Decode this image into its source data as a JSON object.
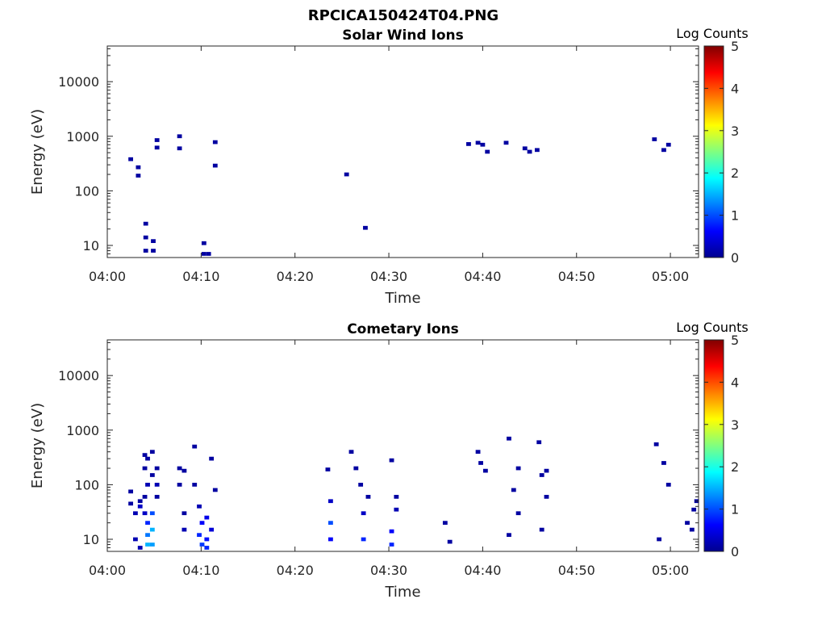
{
  "figure_title": "RPCICA150424T04.PNG",
  "colormap": [
    "#00008f",
    "#0000ff",
    "#0080ff",
    "#00ffff",
    "#80ff80",
    "#ffff00",
    "#ff8000",
    "#ff0000",
    "#800000"
  ],
  "chart_data": [
    {
      "type": "heatmap",
      "title": "Solar Wind Ions",
      "xlabel": "Time",
      "ylabel": "Energy (eV)",
      "x_ticks": [
        "04:00",
        "04:10",
        "04:20",
        "04:30",
        "04:40",
        "04:50",
        "05:00"
      ],
      "y_ticks": [
        "10",
        "100",
        "1000",
        "10000"
      ],
      "y_scale": "log",
      "xlim_minutes_after_0400": [
        0,
        63
      ],
      "ylim_eV": [
        6,
        45000
      ],
      "colorbar": {
        "label": "Log Counts",
        "ticks": [
          "0",
          "1",
          "2",
          "3",
          "4",
          "5"
        ],
        "range": [
          0,
          5
        ]
      },
      "cells": [
        [
          2.5,
          380,
          0.1
        ],
        [
          3.3,
          270,
          0.1
        ],
        [
          3.3,
          190,
          0.1
        ],
        [
          4.1,
          8,
          0.1
        ],
        [
          4.1,
          14,
          0.1
        ],
        [
          4.1,
          25,
          0.1
        ],
        [
          4.9,
          8,
          0.1
        ],
        [
          4.9,
          12,
          0.1
        ],
        [
          5.3,
          620,
          0.1
        ],
        [
          5.3,
          850,
          0.1
        ],
        [
          7.7,
          600,
          0.1
        ],
        [
          7.7,
          1000,
          0.1
        ],
        [
          10.3,
          7,
          0.1
        ],
        [
          10.3,
          11,
          0.1
        ],
        [
          10.8,
          7,
          0.1
        ],
        [
          11.5,
          780,
          0.1
        ],
        [
          11.5,
          290,
          0.1
        ],
        [
          25.5,
          200,
          0.1
        ],
        [
          27.5,
          21,
          0.1
        ],
        [
          38.5,
          720,
          0.1
        ],
        [
          39.5,
          760,
          0.1
        ],
        [
          40.0,
          700,
          0.1
        ],
        [
          40.5,
          520,
          0.1
        ],
        [
          42.5,
          760,
          0.1
        ],
        [
          44.5,
          600,
          0.1
        ],
        [
          45.0,
          520,
          0.1
        ],
        [
          45.8,
          560,
          0.1
        ],
        [
          58.3,
          880,
          0.1
        ],
        [
          59.3,
          560,
          0.1
        ],
        [
          59.8,
          700,
          0.1
        ]
      ]
    },
    {
      "type": "heatmap",
      "title": "Cometary Ions",
      "xlabel": "Time",
      "ylabel": "Energy (eV)",
      "x_ticks": [
        "04:00",
        "04:10",
        "04:20",
        "04:30",
        "04:40",
        "04:50",
        "05:00"
      ],
      "y_ticks": [
        "10",
        "100",
        "1000",
        "10000"
      ],
      "y_scale": "log",
      "xlim_minutes_after_0400": [
        0,
        63
      ],
      "ylim_eV": [
        6,
        45000
      ],
      "colorbar": {
        "label": "Log Counts",
        "ticks": [
          "0",
          "1",
          "2",
          "3",
          "4",
          "5"
        ],
        "range": [
          0,
          5
        ]
      },
      "cells": [
        [
          2.5,
          75,
          0.1
        ],
        [
          2.5,
          45,
          0.1
        ],
        [
          3.0,
          30,
          0.2
        ],
        [
          3.0,
          10,
          0.2
        ],
        [
          3.5,
          50,
          0.1
        ],
        [
          3.5,
          40,
          0.3
        ],
        [
          3.5,
          7,
          0.2
        ],
        [
          4.0,
          30,
          0.3
        ],
        [
          4.0,
          60,
          0.1
        ],
        [
          4.0,
          200,
          0.1
        ],
        [
          4.0,
          350,
          0.1
        ],
        [
          4.3,
          20,
          0.8
        ],
        [
          4.3,
          12,
          1.2
        ],
        [
          4.3,
          8,
          1.5
        ],
        [
          4.3,
          100,
          0.2
        ],
        [
          4.3,
          300,
          0.1
        ],
        [
          4.8,
          30,
          1.0
        ],
        [
          4.8,
          15,
          1.5
        ],
        [
          4.8,
          8,
          1.4
        ],
        [
          4.8,
          150,
          0.1
        ],
        [
          4.8,
          400,
          0.1
        ],
        [
          5.3,
          100,
          0.2
        ],
        [
          5.3,
          200,
          0.1
        ],
        [
          5.3,
          60,
          0.1
        ],
        [
          7.7,
          200,
          0.1
        ],
        [
          7.7,
          100,
          0.1
        ],
        [
          8.2,
          30,
          0.1
        ],
        [
          8.2,
          15,
          0.2
        ],
        [
          8.2,
          180,
          0.1
        ],
        [
          9.3,
          500,
          0.1
        ],
        [
          9.3,
          100,
          0.1
        ],
        [
          9.8,
          40,
          0.2
        ],
        [
          9.8,
          12,
          0.8
        ],
        [
          10.1,
          20,
          0.6
        ],
        [
          10.1,
          8,
          0.9
        ],
        [
          10.6,
          25,
          0.5
        ],
        [
          10.6,
          10,
          0.7
        ],
        [
          10.6,
          7,
          0.8
        ],
        [
          11.1,
          15,
          0.4
        ],
        [
          11.1,
          300,
          0.1
        ],
        [
          11.5,
          80,
          0.1
        ],
        [
          23.5,
          190,
          0.1
        ],
        [
          23.8,
          10,
          0.6
        ],
        [
          23.8,
          20,
          1.0
        ],
        [
          23.8,
          50,
          0.3
        ],
        [
          26.0,
          400,
          0.1
        ],
        [
          26.5,
          200,
          0.1
        ],
        [
          27.0,
          100,
          0.1
        ],
        [
          27.3,
          10,
          0.8
        ],
        [
          27.3,
          30,
          0.3
        ],
        [
          27.8,
          60,
          0.1
        ],
        [
          30.3,
          8,
          0.8
        ],
        [
          30.3,
          14,
          0.6
        ],
        [
          30.3,
          280,
          0.1
        ],
        [
          30.8,
          35,
          0.2
        ],
        [
          30.8,
          60,
          0.1
        ],
        [
          36.0,
          20,
          0.1
        ],
        [
          36.5,
          9,
          0.1
        ],
        [
          39.5,
          400,
          0.1
        ],
        [
          39.8,
          250,
          0.1
        ],
        [
          40.3,
          180,
          0.1
        ],
        [
          42.8,
          700,
          0.1
        ],
        [
          42.8,
          12,
          0.1
        ],
        [
          43.3,
          80,
          0.1
        ],
        [
          43.8,
          200,
          0.1
        ],
        [
          43.8,
          30,
          0.1
        ],
        [
          46.0,
          600,
          0.1
        ],
        [
          46.3,
          150,
          0.1
        ],
        [
          46.8,
          180,
          0.1
        ],
        [
          46.8,
          60,
          0.1
        ],
        [
          46.3,
          15,
          0.1
        ],
        [
          58.5,
          550,
          0.1
        ],
        [
          58.8,
          10,
          0.1
        ],
        [
          59.3,
          250,
          0.1
        ],
        [
          59.8,
          100,
          0.1
        ],
        [
          61.8,
          20,
          0.1
        ],
        [
          62.3,
          15,
          0.1
        ],
        [
          62.5,
          35,
          0.1
        ],
        [
          62.8,
          50,
          0.1
        ]
      ]
    }
  ]
}
